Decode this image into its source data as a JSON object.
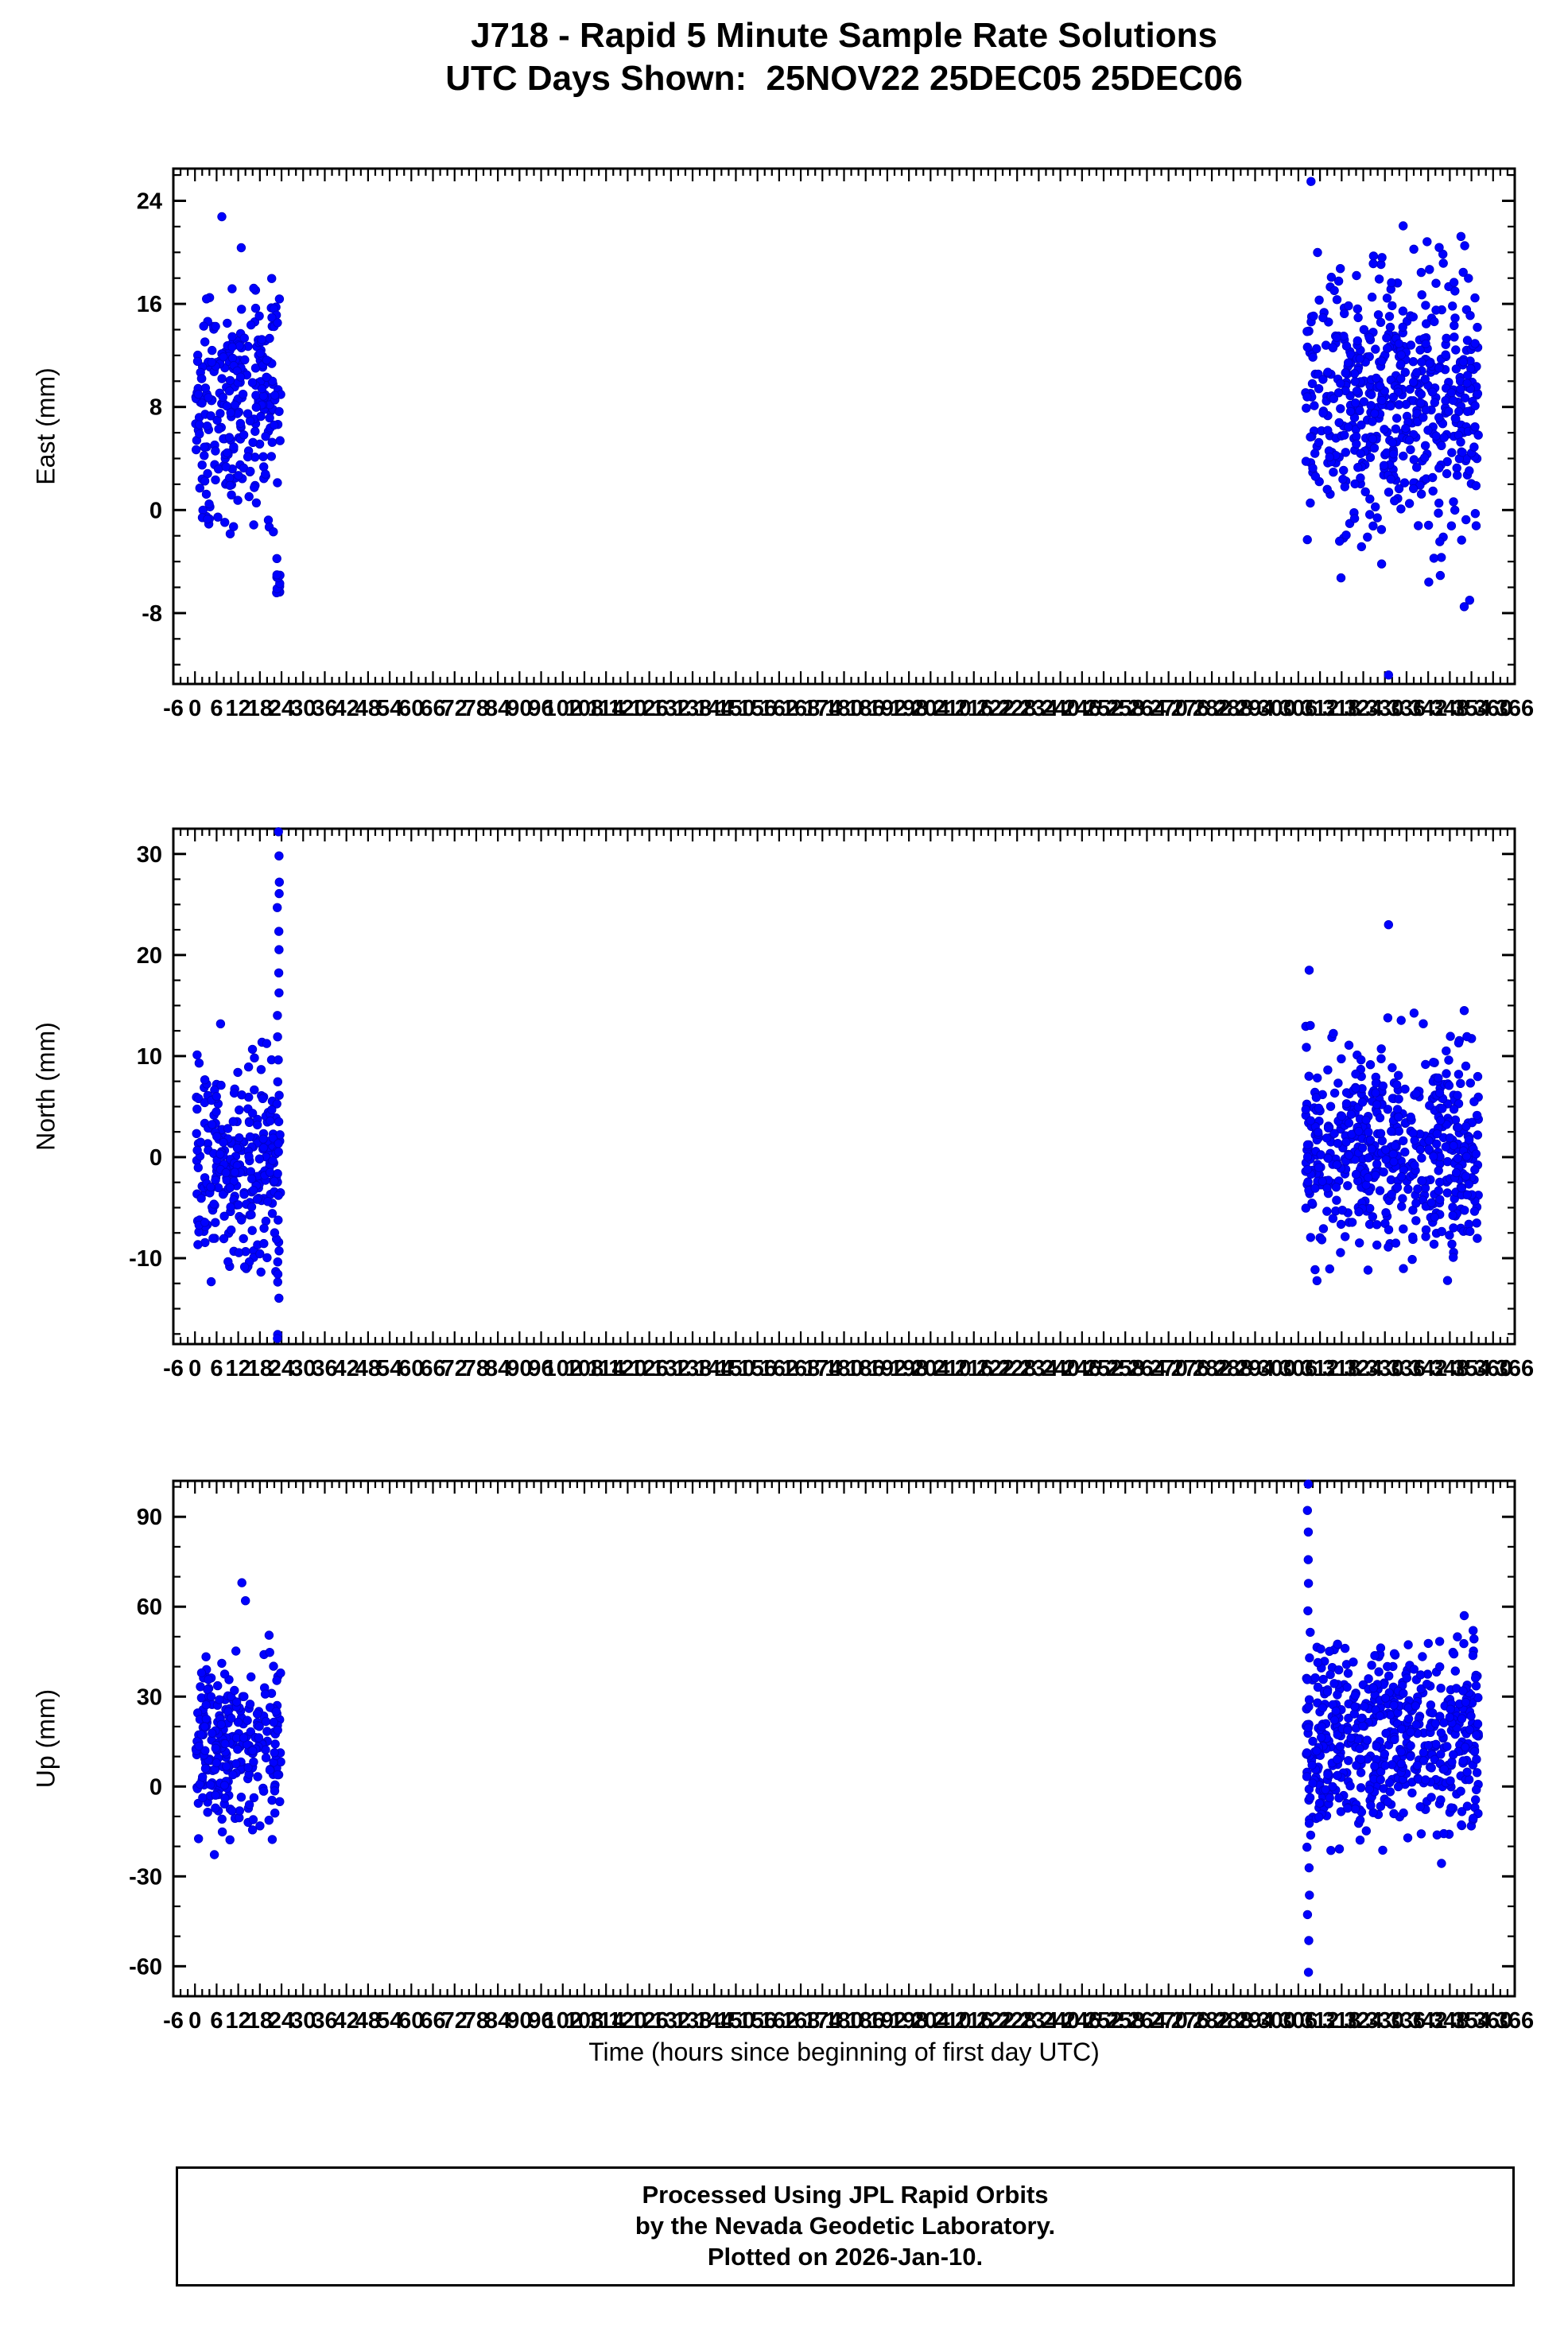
{
  "title": {
    "line1": "J718 - Rapid 5 Minute Sample Rate Solutions",
    "line2": "UTC Days Shown:  25NOV22 25DEC05 25DEC06"
  },
  "xlabel": "Time (hours since beginning of first day UTC)",
  "footer": {
    "line1": "Processed Using JPL Rapid Orbits",
    "line2": "by the Nevada Geodetic Laboratory.",
    "line3": "Plotted on 2026-Jan-10."
  },
  "point_color": "#0000ff",
  "point_stroke": "#0000cc",
  "x_axis": {
    "lim": [
      -6,
      366
    ],
    "step": 6,
    "minor": 2
  },
  "chart_data": [
    {
      "id": "east",
      "type": "scatter",
      "ylabel": "East (mm)",
      "ylim": [
        -13.5,
        26.5
      ],
      "yticks": [
        -8,
        0,
        8,
        16,
        24
      ],
      "ytick_minor": 2,
      "clusters": [
        {
          "x": [
            0.2,
            23.8
          ],
          "n": 270,
          "mean": 8,
          "sd": 4.8,
          "clip": [
            -2.5,
            23.5
          ]
        },
        {
          "x": [
            308,
            356
          ],
          "n": 540,
          "mean": 8,
          "sd": 5.2,
          "clip": [
            -7,
            23
          ]
        }
      ],
      "streaks": [
        {
          "x": [
            22.6,
            23.6
          ],
          "y": [
            -6.8,
            -4.2
          ],
          "n": 12
        }
      ],
      "outliers": [
        [
          309.5,
          25.5
        ],
        [
          331,
          -12.8
        ],
        [
          352,
          -7.5
        ],
        [
          353.5,
          -7.0
        ]
      ]
    },
    {
      "id": "north",
      "type": "scatter",
      "ylabel": "North (mm)",
      "ylim": [
        -18.5,
        32.5
      ],
      "yticks": [
        -10,
        0,
        10,
        20,
        30
      ],
      "ytick_minor": 2.5,
      "clusters": [
        {
          "x": [
            0.2,
            23.8
          ],
          "n": 270,
          "mean": -1,
          "sd": 5.0,
          "clip": [
            -13,
            17.5
          ]
        },
        {
          "x": [
            308,
            356
          ],
          "n": 540,
          "mean": 0.5,
          "sd": 5.0,
          "clip": [
            -15,
            18.5
          ]
        }
      ],
      "streaks": [
        {
          "x": [
            22.8,
            23.4
          ],
          "y": [
            -18,
            32
          ],
          "n": 26
        }
      ],
      "outliers": [
        [
          331,
          23
        ],
        [
          309,
          18.5
        ],
        [
          352,
          14.5
        ]
      ]
    },
    {
      "id": "up",
      "type": "scatter",
      "ylabel": "Up (mm)",
      "ylim": [
        -70,
        102
      ],
      "yticks": [
        -60,
        -30,
        0,
        30,
        60,
        90
      ],
      "ytick_minor": 10,
      "clusters": [
        {
          "x": [
            0.2,
            23.8
          ],
          "n": 270,
          "mean": 14,
          "sd": 14,
          "clip": [
            -33,
            55
          ]
        },
        {
          "x": [
            308,
            356
          ],
          "n": 540,
          "mean": 14,
          "sd": 15,
          "clip": [
            -40,
            57
          ]
        }
      ],
      "streaks": [
        {
          "x": [
            308.3,
            309.3
          ],
          "y": [
            -52,
            100
          ],
          "n": 20
        }
      ],
      "outliers": [
        [
          13,
          68
        ],
        [
          14,
          62
        ],
        [
          308.8,
          -62
        ],
        [
          352,
          57
        ]
      ]
    }
  ]
}
